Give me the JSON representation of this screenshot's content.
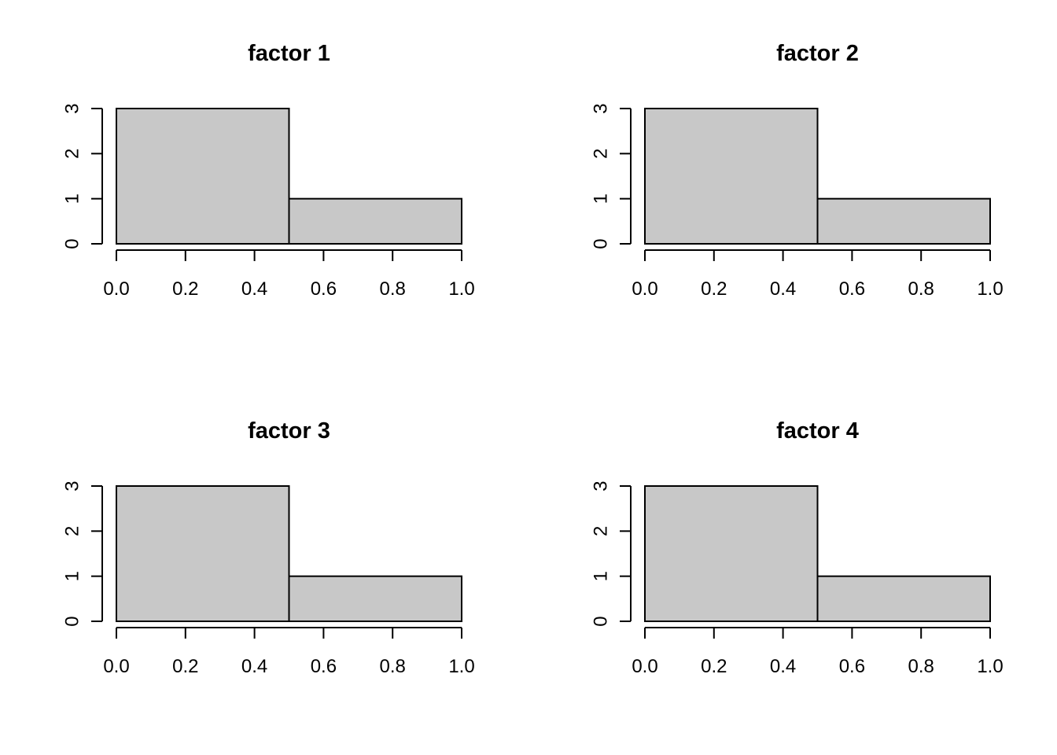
{
  "chart_data": [
    {
      "type": "bar",
      "title": "factor 1",
      "bins": [
        [
          0.0,
          0.5
        ],
        [
          0.5,
          1.0
        ]
      ],
      "values": [
        3,
        1
      ],
      "xlim": [
        0,
        1
      ],
      "ylim": [
        0,
        3
      ],
      "xticks": [
        "0.0",
        "0.2",
        "0.4",
        "0.6",
        "0.8",
        "1.0"
      ],
      "yticks": [
        "0",
        "1",
        "2",
        "3"
      ],
      "xlabel": "",
      "ylabel": "",
      "grid": false,
      "bar_color": "#c8c8c8"
    },
    {
      "type": "bar",
      "title": "factor 2",
      "bins": [
        [
          0.0,
          0.5
        ],
        [
          0.5,
          1.0
        ]
      ],
      "values": [
        3,
        1
      ],
      "xlim": [
        0,
        1
      ],
      "ylim": [
        0,
        3
      ],
      "xticks": [
        "0.0",
        "0.2",
        "0.4",
        "0.6",
        "0.8",
        "1.0"
      ],
      "yticks": [
        "0",
        "1",
        "2",
        "3"
      ],
      "xlabel": "",
      "ylabel": "",
      "grid": false,
      "bar_color": "#c8c8c8"
    },
    {
      "type": "bar",
      "title": "factor 3",
      "bins": [
        [
          0.0,
          0.5
        ],
        [
          0.5,
          1.0
        ]
      ],
      "values": [
        3,
        1
      ],
      "xlim": [
        0,
        1
      ],
      "ylim": [
        0,
        3
      ],
      "xticks": [
        "0.0",
        "0.2",
        "0.4",
        "0.6",
        "0.8",
        "1.0"
      ],
      "yticks": [
        "0",
        "1",
        "2",
        "3"
      ],
      "xlabel": "",
      "ylabel": "",
      "grid": false,
      "bar_color": "#c8c8c8"
    },
    {
      "type": "bar",
      "title": "factor 4",
      "bins": [
        [
          0.0,
          0.5
        ],
        [
          0.5,
          1.0
        ]
      ],
      "values": [
        3,
        1
      ],
      "xlim": [
        0,
        1
      ],
      "ylim": [
        0,
        3
      ],
      "xticks": [
        "0.0",
        "0.2",
        "0.4",
        "0.6",
        "0.8",
        "1.0"
      ],
      "yticks": [
        "0",
        "1",
        "2",
        "3"
      ],
      "xlabel": "",
      "ylabel": "",
      "grid": false,
      "bar_color": "#c8c8c8"
    }
  ]
}
